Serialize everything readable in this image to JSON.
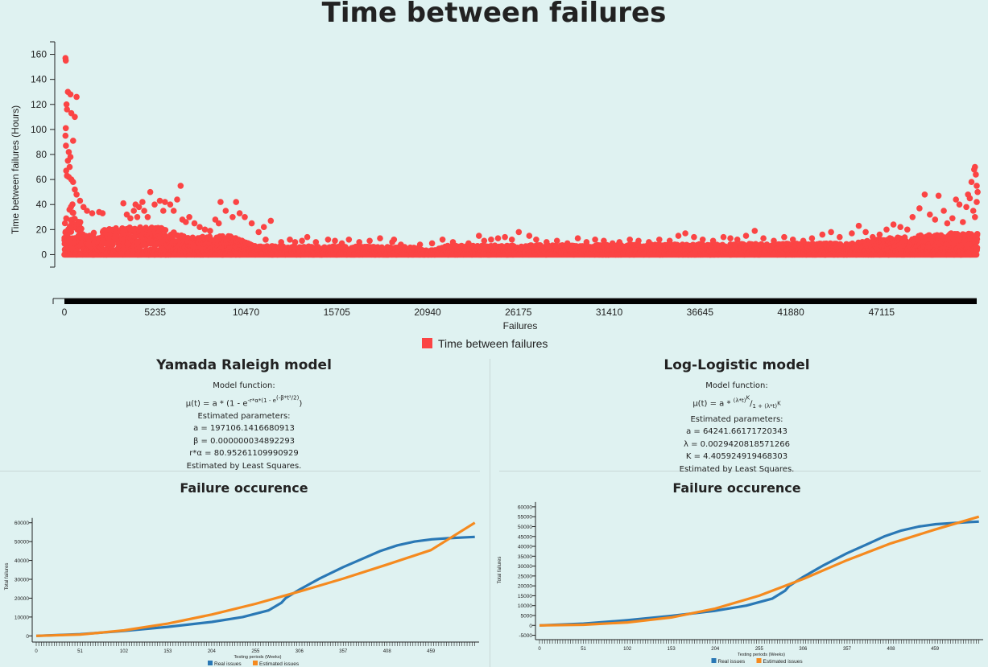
{
  "chart_data": [
    {
      "type": "scatter",
      "title": "Time between failures",
      "xlabel": "Failures",
      "ylabel": "Time between failures (Hours)",
      "x_ticks": [
        0,
        5235,
        10470,
        15705,
        20940,
        26175,
        31410,
        36645,
        41880,
        47115
      ],
      "y_ticks": [
        0,
        20,
        40,
        60,
        80,
        100,
        120,
        140,
        160
      ],
      "xlim": [
        0,
        52600
      ],
      "ylim": [
        -10,
        170
      ],
      "grid": false,
      "legend": "bottom-center",
      "series": [
        {
          "name": "Time between failures",
          "color": "#fb4444",
          "band": [
            [
              0,
              30
            ],
            [
              400,
              42
            ],
            [
              1200,
              16
            ],
            [
              3000,
              22
            ],
            [
              5500,
              22
            ],
            [
              7000,
              14
            ],
            [
              9500,
              15
            ],
            [
              11000,
              7
            ],
            [
              20000,
              6
            ],
            [
              21000,
              3
            ],
            [
              22000,
              7
            ],
            [
              45000,
              9
            ],
            [
              47500,
              13
            ],
            [
              50500,
              17
            ],
            [
              52600,
              17
            ]
          ],
          "outliers": [
            [
              60,
              157
            ],
            [
              80,
              155
            ],
            [
              200,
              130
            ],
            [
              350,
              128
            ],
            [
              120,
              120
            ],
            [
              150,
              116
            ],
            [
              400,
              113
            ],
            [
              600,
              110
            ],
            [
              700,
              126
            ],
            [
              500,
              91
            ],
            [
              80,
              101
            ],
            [
              60,
              95
            ],
            [
              90,
              87
            ],
            [
              250,
              82
            ],
            [
              350,
              78
            ],
            [
              200,
              75
            ],
            [
              300,
              70
            ],
            [
              100,
              67
            ],
            [
              150,
              63
            ],
            [
              250,
              62
            ],
            [
              400,
              60
            ],
            [
              500,
              58
            ],
            [
              600,
              52
            ],
            [
              700,
              48
            ],
            [
              900,
              43
            ],
            [
              1100,
              38
            ],
            [
              1300,
              35
            ],
            [
              1600,
              33
            ],
            [
              2000,
              34
            ],
            [
              2200,
              33
            ],
            [
              3400,
              41
            ],
            [
              3600,
              32
            ],
            [
              3800,
              29
            ],
            [
              4000,
              35
            ],
            [
              4200,
              30
            ],
            [
              4100,
              40
            ],
            [
              4300,
              38
            ],
            [
              4500,
              42
            ],
            [
              4600,
              35
            ],
            [
              4800,
              30
            ],
            [
              4950,
              50
            ],
            [
              5200,
              40
            ],
            [
              5500,
              43
            ],
            [
              5700,
              35
            ],
            [
              5800,
              42
            ],
            [
              6100,
              40
            ],
            [
              6300,
              35
            ],
            [
              6500,
              44
            ],
            [
              6700,
              55
            ],
            [
              6800,
              28
            ],
            [
              7000,
              26
            ],
            [
              7200,
              30
            ],
            [
              7500,
              25
            ],
            [
              7800,
              22
            ],
            [
              8100,
              20
            ],
            [
              8400,
              19
            ],
            [
              8700,
              28
            ],
            [
              8900,
              25
            ],
            [
              9000,
              42
            ],
            [
              9300,
              35
            ],
            [
              9700,
              30
            ],
            [
              9900,
              42
            ],
            [
              10100,
              33
            ],
            [
              10400,
              30
            ],
            [
              10800,
              25
            ],
            [
              11200,
              18
            ],
            [
              11500,
              22
            ],
            [
              11600,
              12
            ],
            [
              11900,
              27
            ],
            [
              12500,
              10
            ],
            [
              13000,
              12
            ],
            [
              13300,
              10
            ],
            [
              13700,
              11
            ],
            [
              14000,
              14
            ],
            [
              14500,
              10
            ],
            [
              15200,
              12
            ],
            [
              15600,
              11
            ],
            [
              16000,
              9
            ],
            [
              16400,
              12
            ],
            [
              17000,
              10
            ],
            [
              17600,
              11
            ],
            [
              18200,
              13
            ],
            [
              18900,
              10
            ],
            [
              19000,
              12
            ],
            [
              19400,
              8
            ],
            [
              20500,
              8
            ],
            [
              21200,
              9
            ],
            [
              21800,
              12
            ],
            [
              22400,
              10
            ],
            [
              23300,
              9
            ],
            [
              23900,
              15
            ],
            [
              24200,
              11
            ],
            [
              24600,
              12
            ],
            [
              25000,
              13
            ],
            [
              25400,
              14
            ],
            [
              25800,
              12
            ],
            [
              26200,
              18
            ],
            [
              26800,
              15
            ],
            [
              27200,
              12
            ],
            [
              27800,
              10
            ],
            [
              28400,
              11
            ],
            [
              29000,
              9
            ],
            [
              29600,
              13
            ],
            [
              30100,
              10
            ],
            [
              30600,
              12
            ],
            [
              31100,
              11
            ],
            [
              31600,
              9
            ],
            [
              32000,
              10
            ],
            [
              32600,
              12
            ],
            [
              33100,
              11
            ],
            [
              33700,
              10
            ],
            [
              34300,
              12
            ],
            [
              34900,
              11
            ],
            [
              35400,
              15
            ],
            [
              35800,
              17
            ],
            [
              36300,
              14
            ],
            [
              36800,
              12
            ],
            [
              37400,
              11
            ],
            [
              38000,
              14
            ],
            [
              38400,
              13
            ],
            [
              38800,
              12
            ],
            [
              39300,
              15
            ],
            [
              39800,
              19
            ],
            [
              40300,
              13
            ],
            [
              40900,
              11
            ],
            [
              41500,
              14
            ],
            [
              42000,
              12
            ],
            [
              42600,
              11
            ],
            [
              43100,
              13
            ],
            [
              43700,
              16
            ],
            [
              44200,
              18
            ],
            [
              44700,
              14
            ],
            [
              45400,
              17
            ],
            [
              45800,
              23
            ],
            [
              46200,
              18
            ],
            [
              46600,
              14
            ],
            [
              47000,
              16
            ],
            [
              47400,
              20
            ],
            [
              47800,
              24
            ],
            [
              48200,
              22
            ],
            [
              48600,
              20
            ],
            [
              48900,
              30
            ],
            [
              49300,
              37
            ],
            [
              49600,
              48
            ],
            [
              49900,
              32
            ],
            [
              50200,
              28
            ],
            [
              50400,
              47
            ],
            [
              50700,
              35
            ],
            [
              50900,
              25
            ],
            [
              51200,
              29
            ],
            [
              51400,
              44
            ],
            [
              51600,
              40
            ],
            [
              51800,
              26
            ],
            [
              52000,
              38
            ],
            [
              52100,
              48
            ],
            [
              52200,
              45
            ],
            [
              52300,
              58
            ],
            [
              52400,
              35
            ],
            [
              52450,
              68
            ],
            [
              52500,
              70
            ],
            [
              52550,
              64
            ],
            [
              52600,
              55
            ],
            [
              52650,
              50
            ],
            [
              52500,
              30
            ],
            [
              52600,
              42
            ]
          ]
        }
      ]
    },
    {
      "type": "line",
      "title": "Failure occurence",
      "xlabel": "Testing periods (Weeks)",
      "ylabel": "Total failures",
      "x_ticks": [
        0,
        51,
        102,
        153,
        204,
        255,
        306,
        357,
        408,
        459
      ],
      "y_ticks": [
        0,
        10000,
        20000,
        30000,
        40000,
        50000,
        60000
      ],
      "xlim": [
        0,
        515
      ],
      "ylim": [
        -2000,
        65000
      ],
      "legend": "bottom-center",
      "series": [
        {
          "name": "Real issues",
          "color": "#2a78b5",
          "x": [
            0,
            51,
            102,
            153,
            204,
            240,
            270,
            285,
            290,
            306,
            330,
            357,
            380,
            400,
            420,
            440,
            460,
            480,
            500,
            510
          ],
          "y": [
            0,
            900,
            2600,
            4800,
            7400,
            10000,
            13500,
            17500,
            20000,
            24500,
            30500,
            36500,
            41000,
            45000,
            48000,
            50000,
            51200,
            51800,
            52300,
            52500
          ]
        },
        {
          "name": "Estimated issues",
          "color": "#f58a1f",
          "x": [
            0,
            51,
            102,
            153,
            204,
            255,
            306,
            357,
            408,
            459,
            510
          ],
          "y": [
            0,
            700,
            2900,
            6500,
            11300,
            17000,
            23500,
            30400,
            37800,
            45500,
            60000
          ]
        }
      ]
    },
    {
      "type": "line",
      "title": "Failure occurence",
      "xlabel": "Testing periods (Weeks)",
      "ylabel": "Total failures",
      "x_ticks": [
        0,
        51,
        102,
        153,
        204,
        255,
        306,
        357,
        408,
        459
      ],
      "y_ticks": [
        -5000,
        0,
        5000,
        10000,
        15000,
        20000,
        25000,
        30000,
        35000,
        40000,
        45000,
        50000,
        55000,
        60000
      ],
      "xlim": [
        0,
        515
      ],
      "ylim": [
        -6000,
        62000
      ],
      "legend": "bottom-center",
      "series": [
        {
          "name": "Real issues",
          "color": "#2a78b5",
          "x": [
            0,
            51,
            102,
            153,
            204,
            240,
            270,
            285,
            290,
            306,
            330,
            357,
            380,
            400,
            420,
            440,
            460,
            480,
            500,
            510
          ],
          "y": [
            0,
            900,
            2600,
            4800,
            7400,
            10000,
            13500,
            17500,
            20000,
            24500,
            30500,
            36500,
            41000,
            45000,
            48000,
            50000,
            51200,
            51800,
            52300,
            52500
          ]
        },
        {
          "name": "Estimated issues",
          "color": "#f58a1f",
          "x": [
            0,
            51,
            102,
            153,
            204,
            255,
            306,
            357,
            408,
            459,
            510
          ],
          "y": [
            0,
            300,
            1500,
            4000,
            8500,
            15000,
            23500,
            33000,
            41500,
            48500,
            55000
          ]
        }
      ]
    }
  ],
  "models": {
    "left": {
      "title": "Yamada Raleigh model",
      "fn_label": "Model function:",
      "fn": {
        "lhs": "μ(t) = a * (1 - e",
        "sup1": "-r*α*(1 - e",
        "sup2": "(-β*t²/2)",
        "tail": ")"
      },
      "params_label": "Estimated parameters:",
      "params": [
        "a = 197106.1416680913",
        "β = 0.000000034892293",
        "r*α = 80.95261109990929"
      ],
      "method": "Estimated by Least Squares."
    },
    "right": {
      "title": "Log-Logistic model",
      "fn_label": "Model function:",
      "fn": {
        "lhs": "μ(t) = a *",
        "num": "(λ*t)",
        "num_exp": "K",
        "den": "1 + (λ*t)",
        "den_exp": "K"
      },
      "params_label": "Estimated parameters:",
      "params": [
        "a = 64241.66171720343",
        "λ = 0.0029420818571266",
        "K = 4.405924919468303"
      ],
      "method": "Estimated by Least Squares."
    }
  }
}
